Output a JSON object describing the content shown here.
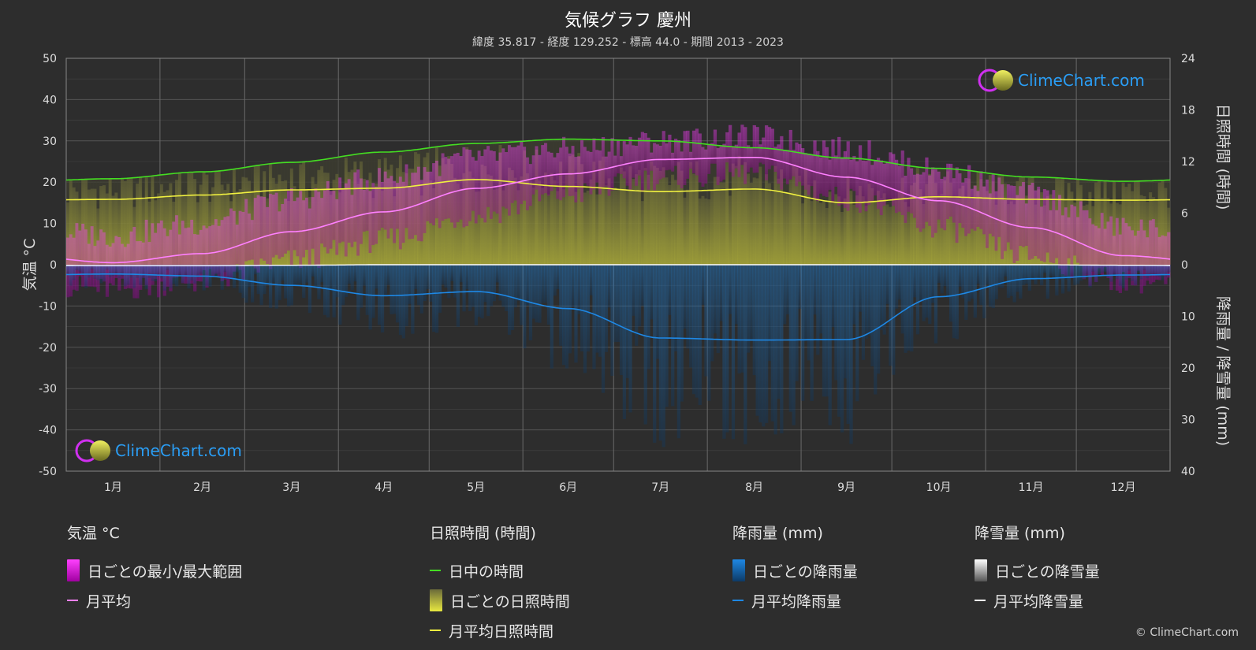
{
  "header": {
    "title": "気候グラフ 慶州",
    "subtitle": "緯度 35.817 - 経度 129.252 - 標高 44.0 - 期間 2013 - 2023"
  },
  "logo": {
    "text": "ClimeChart.com"
  },
  "copyright": "© ClimeChart.com",
  "colors": {
    "background": "#2d2d2d",
    "temp_range": "#e020e0",
    "temp_avg": "#ff80ff",
    "daylight": "#44dd22",
    "sunshine": "#c8c832",
    "sunshine_avg": "#f0f040",
    "rain": "#1e88e5",
    "snow": "#ffffff",
    "logo_text": "#2a9df4"
  },
  "chart_data": {
    "type": "line",
    "categories": [
      "1月",
      "2月",
      "3月",
      "4月",
      "5月",
      "6月",
      "7月",
      "8月",
      "9月",
      "10月",
      "11月",
      "12月"
    ],
    "left_axis": {
      "label": "気温 °C",
      "ylim": [
        -50,
        50
      ],
      "ticks": [
        50,
        40,
        30,
        20,
        10,
        0,
        -10,
        -20,
        -30,
        -40,
        -50
      ]
    },
    "right_axis_top": {
      "label": "日照時間 (時間)",
      "ylim": [
        0,
        24
      ],
      "ticks": [
        24,
        18,
        12,
        6,
        0
      ]
    },
    "right_axis_bottom": {
      "label": "降雨量 / 降雪量 (mm)",
      "ylim": [
        0,
        40
      ],
      "ticks": [
        10,
        20,
        30,
        40
      ]
    },
    "grid": true,
    "series": [
      {
        "name": "日中の時間",
        "axis": "sunshine_hours",
        "values": [
          10.0,
          10.8,
          11.9,
          13.1,
          14.1,
          14.6,
          14.4,
          13.6,
          12.4,
          11.2,
          10.2,
          9.7
        ]
      },
      {
        "name": "月平均日照時間",
        "axis": "sunshine_hours",
        "values": [
          7.6,
          8.1,
          8.7,
          8.9,
          9.9,
          9.1,
          8.5,
          8.8,
          7.2,
          7.9,
          7.6,
          7.5
        ]
      },
      {
        "name": "月平均",
        "axis": "temperature",
        "values": [
          0.5,
          2.7,
          8.0,
          12.8,
          18.5,
          22.0,
          25.5,
          26.0,
          21.2,
          15.5,
          9.0,
          2.2
        ]
      },
      {
        "name": "日ごとの最小/最大範囲",
        "axis": "temperature",
        "min": [
          -6,
          -4,
          1,
          6,
          12,
          17,
          21,
          22,
          16,
          9,
          2,
          -4
        ],
        "max": [
          7,
          10,
          16,
          21,
          26,
          28,
          30,
          31,
          28,
          23,
          17,
          9
        ]
      },
      {
        "name": "月平均降雨量",
        "axis": "precip_mm",
        "values": [
          1.8,
          2.2,
          4.0,
          6.0,
          5.2,
          8.5,
          14.2,
          14.6,
          14.5,
          6.2,
          2.7,
          2.0
        ]
      },
      {
        "name": "月平均降雪量",
        "axis": "precip_mm",
        "values": [
          0.2,
          0.2,
          0.1,
          0,
          0,
          0,
          0,
          0,
          0,
          0,
          0,
          0.1
        ]
      }
    ]
  },
  "legend": {
    "groups": [
      {
        "title": "気温 °C",
        "items": [
          "日ごとの最小/最大範囲",
          "月平均"
        ]
      },
      {
        "title": "日照時間 (時間)",
        "items": [
          "日中の時間",
          "日ごとの日照時間",
          "月平均日照時間"
        ]
      },
      {
        "title": "降雨量 (mm)",
        "items": [
          "日ごとの降雨量",
          "月平均降雨量"
        ]
      },
      {
        "title": "降雪量 (mm)",
        "items": [
          "日ごとの降雪量",
          "月平均降雪量"
        ]
      }
    ]
  }
}
